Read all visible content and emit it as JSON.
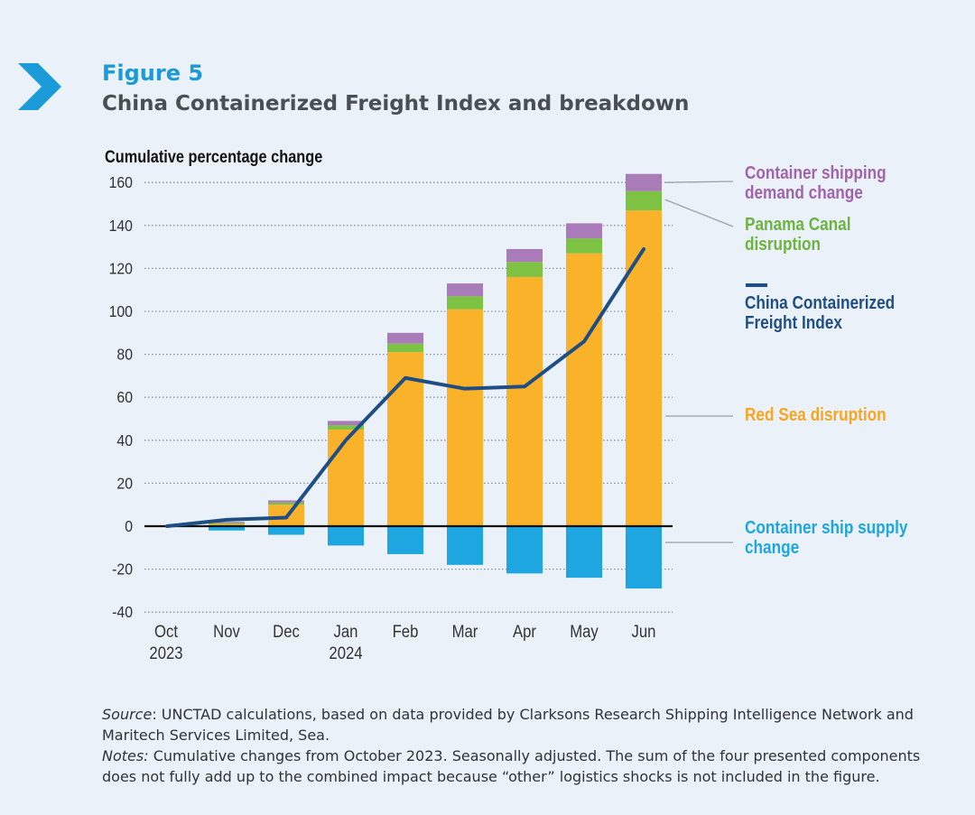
{
  "header": {
    "figure_label": "Figure 5",
    "title": "China Containerized Freight Index and breakdown"
  },
  "chart_data": {
    "type": "bar",
    "ylabel": "Cumulative percentage change",
    "ylim": [
      -40,
      160
    ],
    "yticks": [
      160,
      140,
      120,
      100,
      80,
      60,
      40,
      20,
      0,
      -20,
      -40
    ],
    "grid": "horizontal dotted",
    "categories": [
      "Oct",
      "Nov",
      "Dec",
      "Jan",
      "Feb",
      "Mar",
      "Apr",
      "May",
      "Jun"
    ],
    "category_sublabels": [
      "2023",
      "",
      "",
      "2024",
      "",
      "",
      "",
      "",
      ""
    ],
    "series": [
      {
        "key": "supply",
        "name": "Container ship supply\nchange",
        "type": "bar",
        "color": "#1da6e0",
        "values": [
          0,
          -2,
          -4,
          -9,
          -13,
          -18,
          -22,
          -24,
          -29
        ]
      },
      {
        "key": "redsea",
        "name": "Red Sea disruption",
        "type": "bar",
        "color": "#f9b22a",
        "values": [
          0,
          1,
          10,
          45,
          81,
          101,
          116,
          127,
          147
        ]
      },
      {
        "key": "panama",
        "name": "Panama Canal\ndisruption",
        "type": "bar",
        "color": "#7dc242",
        "values": [
          0,
          0.5,
          1,
          2,
          4,
          6,
          7,
          7,
          9
        ]
      },
      {
        "key": "demand",
        "name": "Container shipping\ndemand change",
        "type": "bar",
        "color": "#a97bb8",
        "values": [
          0,
          0.5,
          1,
          2,
          5,
          6,
          6,
          7,
          8
        ]
      },
      {
        "key": "ccfi",
        "name": "China Containerized\nFreight Index",
        "type": "line",
        "color": "#1f4e85",
        "values": [
          0,
          3,
          4,
          40,
          69,
          64,
          65,
          86,
          129
        ]
      }
    ]
  },
  "notes": {
    "source_label": "Source",
    "source_text": ": UNCTAD calculations, based on data provided by Clarksons Research Shipping Intelligence Network and Maritech Services Limited, Sea.",
    "notes_label": "Notes:",
    "notes_text": " Cumulative changes from October 2023. Seasonally adjusted. The sum of the four presented components does not fully add up to the combined impact because “other” logistics shocks is not included in the figure."
  }
}
